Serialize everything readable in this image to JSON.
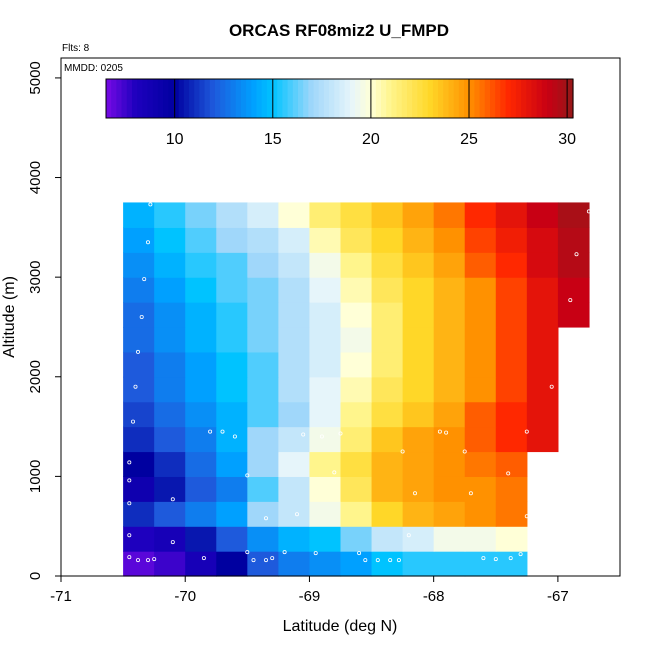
{
  "chart_data": {
    "type": "heatmap",
    "title": "ORCAS RF08miz2 U_FMPD",
    "xlabel": "Latitude (deg N)",
    "ylabel": "Altitude (m)",
    "xlim": [
      -71,
      -66.5
    ],
    "ylim": [
      0,
      5200
    ],
    "xticks": [
      -71,
      -70,
      -69,
      -68,
      -67
    ],
    "yticks": [
      0,
      1000,
      2000,
      3000,
      4000,
      5000
    ],
    "annotations": {
      "flights": "Flts: 8",
      "date": "MMDD: 0205"
    },
    "colorbar": {
      "min": 6.5,
      "max": 30.3,
      "ticks": [
        10,
        15,
        20,
        25,
        30
      ]
    },
    "x_bins": [
      -70.5,
      -70.25,
      -70.0,
      -69.75,
      -69.5,
      -69.25,
      -69.0,
      -68.75,
      -68.5,
      -68.25,
      -68.0,
      -67.75,
      -67.5,
      -67.25,
      -67.0,
      -66.75
    ],
    "y_bins": [
      0,
      250,
      500,
      750,
      1000,
      1250,
      1500,
      1750,
      2000,
      2250,
      2500,
      2750,
      3000,
      3250,
      3500,
      3750
    ],
    "rows": [
      [
        7,
        7.5,
        8.5,
        10,
        12,
        13,
        13.5,
        14,
        15,
        15.5,
        15.5,
        15.5,
        15.5,
        null,
        null
      ],
      [
        8,
        8.5,
        10.5,
        12,
        13.5,
        14.5,
        15,
        16.5,
        18,
        18.5,
        19.5,
        19.5,
        20,
        null,
        null
      ],
      [
        11,
        12,
        13,
        14,
        17,
        18,
        19.5,
        21,
        23,
        24,
        24.5,
        25,
        25.5,
        null,
        null
      ],
      [
        9,
        10.5,
        12,
        13,
        16,
        18,
        20,
        22,
        24,
        24.5,
        25,
        25,
        25.5,
        null,
        null
      ],
      [
        10,
        11,
        12.5,
        14,
        17,
        19,
        21,
        22.5,
        24,
        24.5,
        25,
        25.5,
        26,
        null,
        null
      ],
      [
        11,
        12,
        13,
        14.5,
        17,
        18,
        19.5,
        21.5,
        23.5,
        24.5,
        25,
        26,
        27,
        28,
        null
      ],
      [
        11.5,
        12.5,
        13.5,
        14.5,
        16,
        17,
        19,
        21,
        22.5,
        23.5,
        24.5,
        26,
        27,
        28,
        null
      ],
      [
        12,
        13,
        14,
        15,
        16,
        17.5,
        19,
        20.5,
        22,
        23,
        24,
        25,
        26.5,
        28,
        null
      ],
      [
        12,
        13,
        14,
        15,
        16,
        17.5,
        18.5,
        20,
        21.5,
        23,
        24,
        25,
        26.5,
        28,
        null
      ],
      [
        12.5,
        13.5,
        14.5,
        15.5,
        16.5,
        17.5,
        18.5,
        19.5,
        21.5,
        23,
        24,
        25,
        26.5,
        28,
        null
      ],
      [
        12.5,
        13.5,
        14.5,
        15.5,
        16.5,
        17.5,
        18.5,
        20,
        21.5,
        23,
        24,
        25,
        26.5,
        28,
        29
      ],
      [
        13,
        14,
        15,
        16,
        16.5,
        17.5,
        19,
        20.5,
        22,
        23,
        24,
        25,
        26.5,
        28,
        29
      ],
      [
        13.5,
        14.5,
        15.5,
        16,
        17,
        18,
        19.5,
        21,
        22.5,
        23.5,
        24.5,
        26,
        27,
        28.5,
        29.5
      ],
      [
        14,
        15,
        16,
        17,
        17.5,
        18.5,
        20.5,
        22,
        23,
        24,
        25,
        26.5,
        27.5,
        28.5,
        29.5
      ],
      [
        14.5,
        15.5,
        16.5,
        17.5,
        18.5,
        20,
        21.5,
        22.5,
        23.5,
        24.5,
        25.5,
        27,
        28,
        29,
        29.8
      ]
    ],
    "data_points": [
      [
        -70.45,
        190
      ],
      [
        -70.38,
        160
      ],
      [
        -70.3,
        160
      ],
      [
        -70.25,
        170
      ],
      [
        -70.45,
        410
      ],
      [
        -70.1,
        340
      ],
      [
        -69.85,
        180
      ],
      [
        -69.5,
        240
      ],
      [
        -69.45,
        160
      ],
      [
        -69.35,
        160
      ],
      [
        -69.3,
        180
      ],
      [
        -69.2,
        240
      ],
      [
        -68.95,
        230
      ],
      [
        -68.6,
        230
      ],
      [
        -68.55,
        160
      ],
      [
        -68.45,
        160
      ],
      [
        -68.35,
        160
      ],
      [
        -68.28,
        160
      ],
      [
        -68.2,
        410
      ],
      [
        -67.6,
        180
      ],
      [
        -67.5,
        170
      ],
      [
        -67.38,
        180
      ],
      [
        -67.3,
        220
      ],
      [
        -70.45,
        730
      ],
      [
        -70.45,
        960
      ],
      [
        -70.45,
        1140
      ],
      [
        -70.1,
        770
      ],
      [
        -69.8,
        1450
      ],
      [
        -69.7,
        1450
      ],
      [
        -69.6,
        1400
      ],
      [
        -69.5,
        1010
      ],
      [
        -69.35,
        580
      ],
      [
        -69.1,
        620
      ],
      [
        -69.05,
        1420
      ],
      [
        -68.9,
        1400
      ],
      [
        -68.8,
        1040
      ],
      [
        -68.75,
        1430
      ],
      [
        -68.25,
        1250
      ],
      [
        -68.15,
        830
      ],
      [
        -67.95,
        1450
      ],
      [
        -67.9,
        1440
      ],
      [
        -67.75,
        1250
      ],
      [
        -67.7,
        830
      ],
      [
        -67.4,
        1030
      ],
      [
        -67.25,
        1450
      ],
      [
        -67.25,
        600
      ],
      [
        -70.42,
        1550
      ],
      [
        -70.4,
        1900
      ],
      [
        -70.38,
        2250
      ],
      [
        -70.35,
        2600
      ],
      [
        -70.33,
        2980
      ],
      [
        -70.3,
        3350
      ],
      [
        -70.28,
        3730
      ],
      [
        -67.05,
        1900
      ],
      [
        -66.95,
        2350
      ],
      [
        -66.9,
        2770
      ],
      [
        -66.85,
        3230
      ],
      [
        -66.75,
        3660
      ]
    ]
  }
}
